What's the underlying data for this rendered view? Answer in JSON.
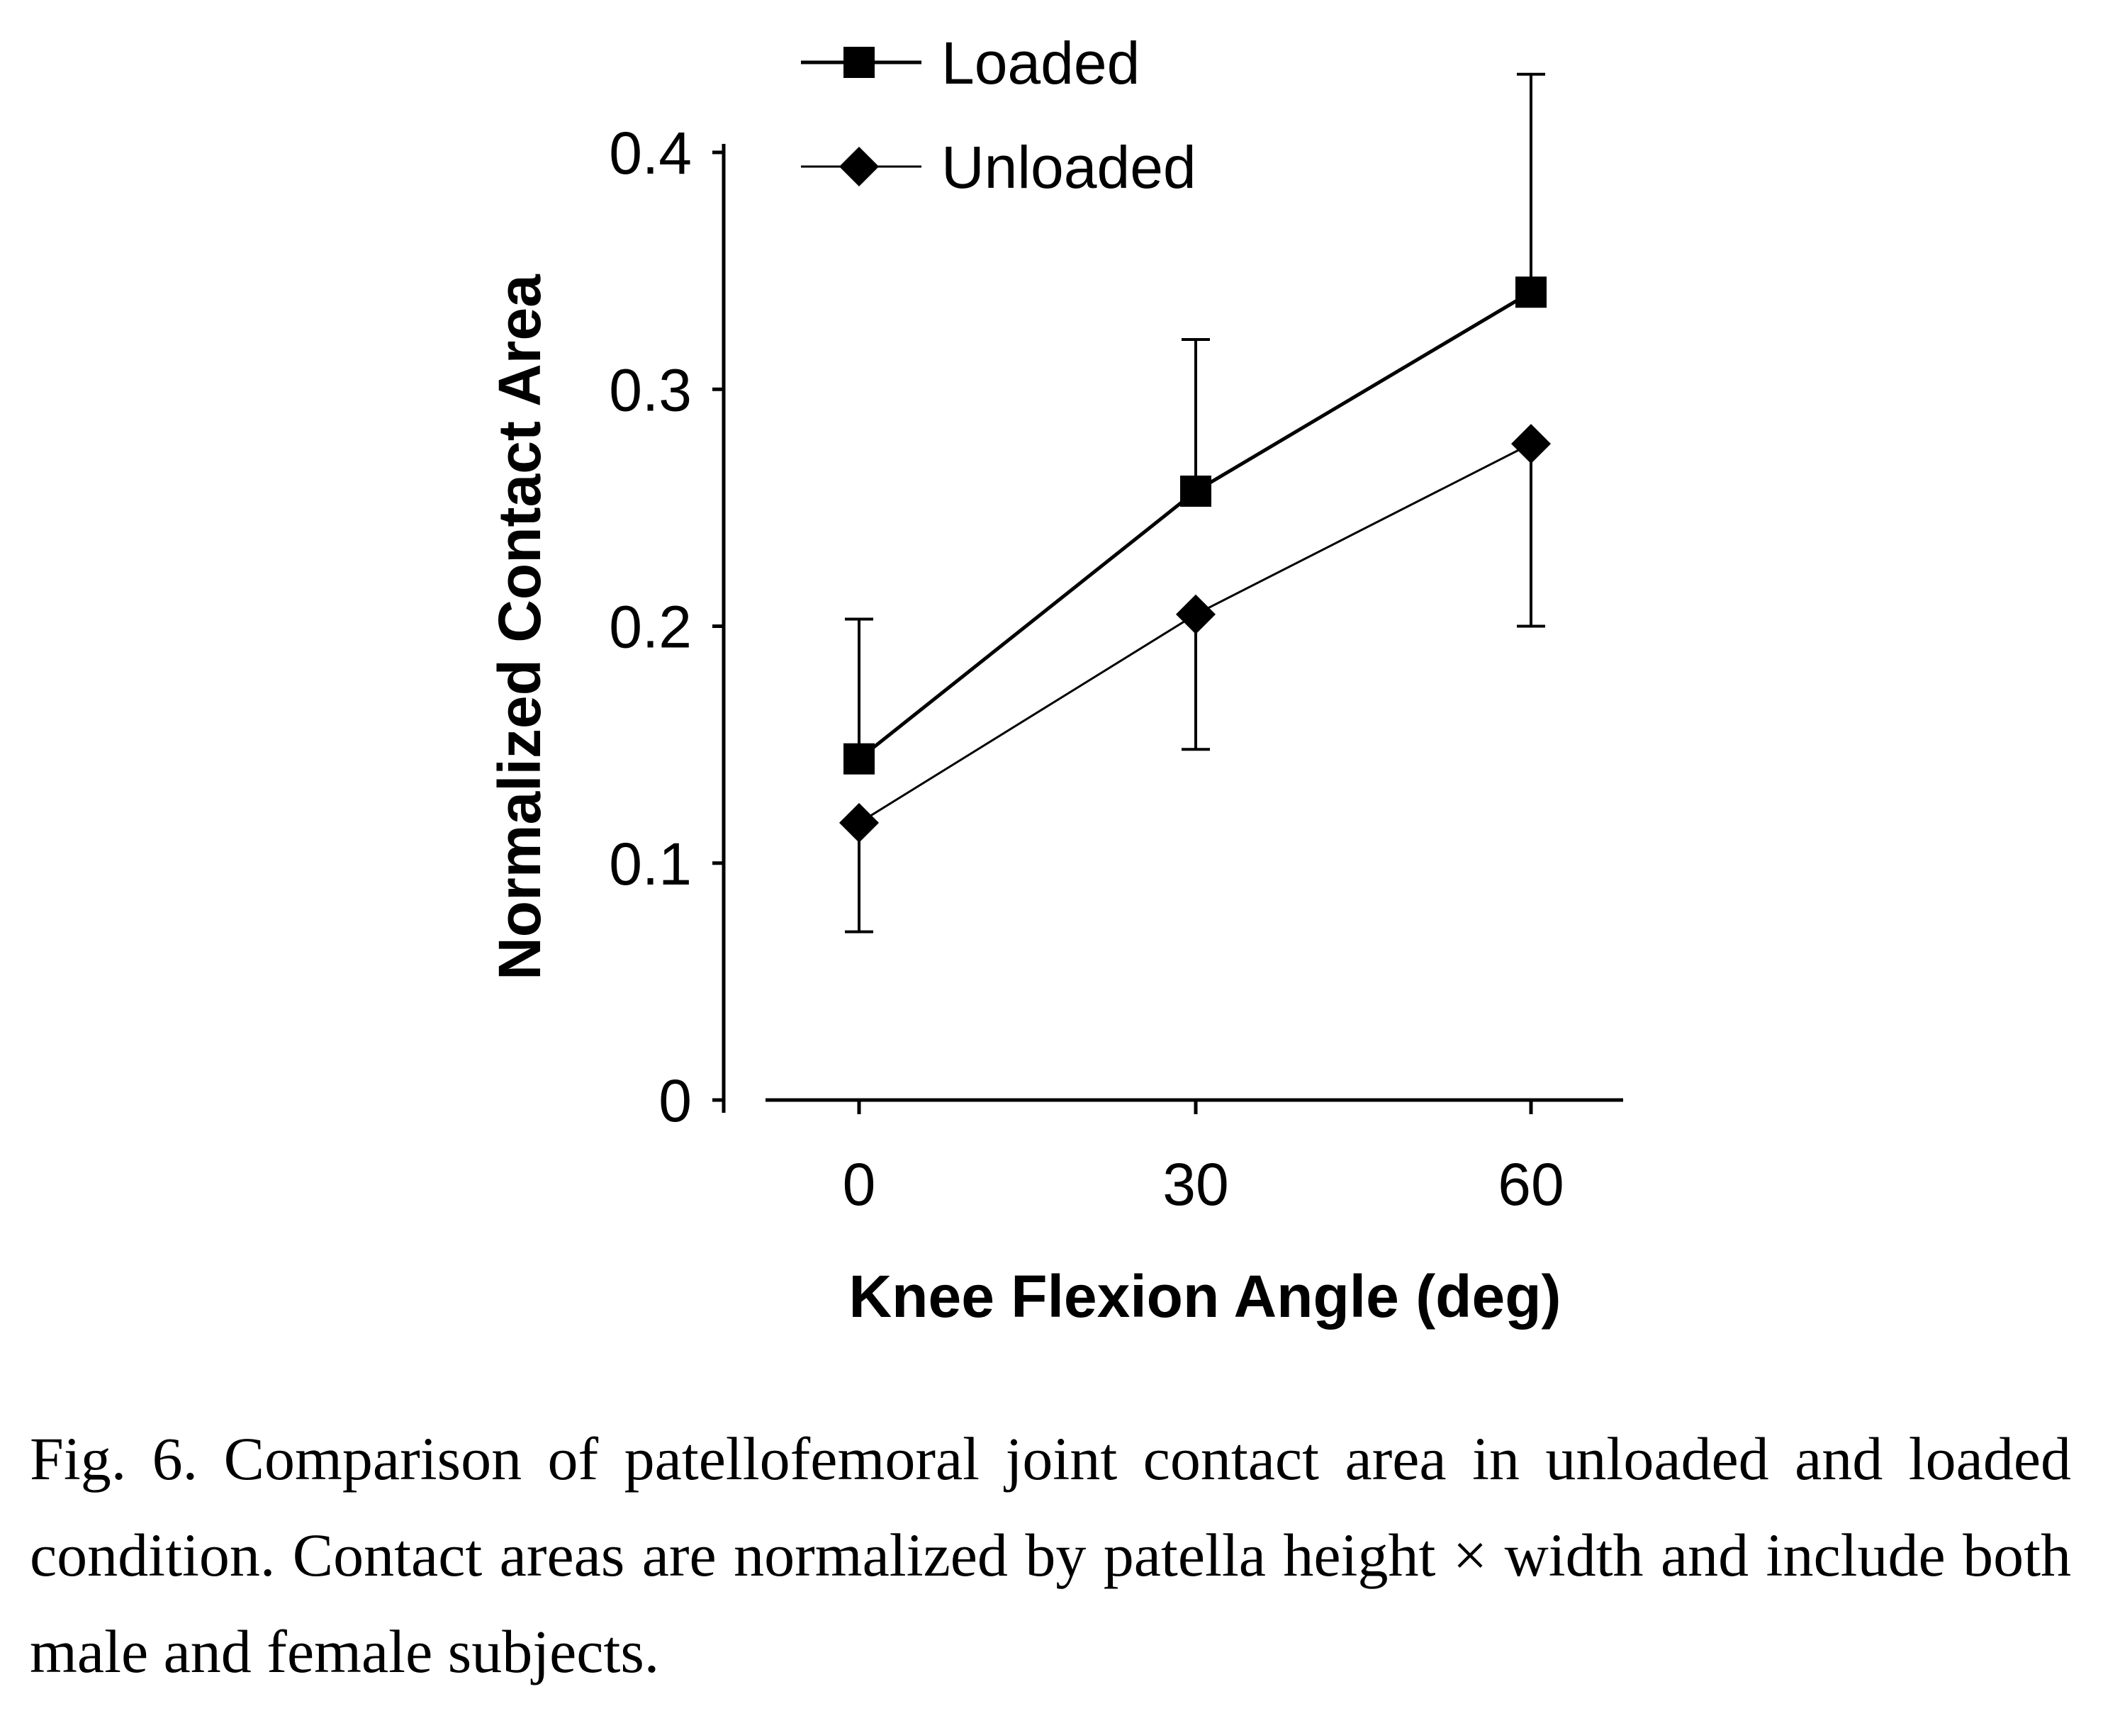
{
  "chart_data": {
    "type": "line",
    "x": [
      0,
      30,
      60
    ],
    "xlabel": "Knee Flexion Angle (deg)",
    "ylabel": "Normalized Contact Area",
    "x_tick_labels": [
      "0",
      "30",
      "60"
    ],
    "y_ticks": [
      0,
      0.1,
      0.2,
      0.3,
      0.4
    ],
    "y_tick_labels": [
      "0",
      "0.1",
      "0.2",
      "0.3",
      "0.4"
    ],
    "ylim": [
      0,
      0.4
    ],
    "grid": false,
    "legend_position": "top",
    "series": [
      {
        "name": "Loaded",
        "marker": "square",
        "values": [
          0.144,
          0.257,
          0.341
        ],
        "error_upper": [
          0.203,
          0.321,
          0.433
        ],
        "error_lower": [
          null,
          null,
          null
        ]
      },
      {
        "name": "Unloaded",
        "marker": "diamond",
        "values": [
          0.117,
          0.205,
          0.277
        ],
        "error_upper": [
          null,
          null,
          null
        ],
        "error_lower": [
          0.071,
          0.148,
          0.2
        ]
      }
    ]
  },
  "caption": "Fig. 6. Comparison of patellofemoral joint contact area in unloaded and loaded condition. Contact areas are normalized by patella height × width and include both male and female subjects."
}
